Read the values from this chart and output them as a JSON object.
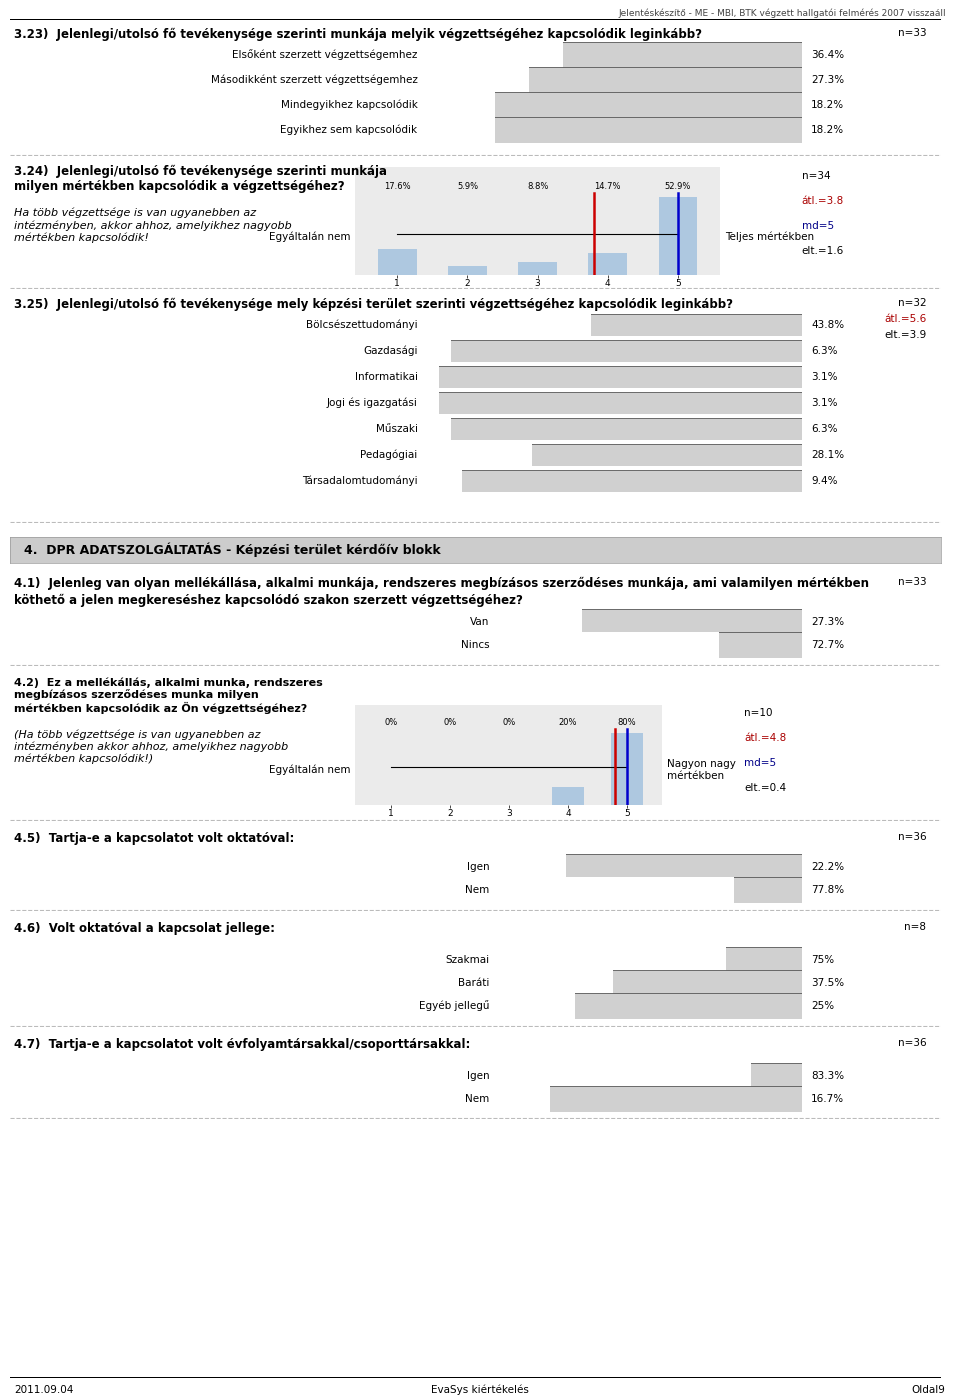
{
  "header": "Jelentéskészítő - ME - MBI, BTK végzett hallgatói felmérés 2007 visszaáll",
  "footer_left": "2011.09.04",
  "footer_center": "EvaSys kiértékelés",
  "footer_right": "Oldal9",
  "q323_label": "3.23)  Jelenlegi/utolsó fő tevékenysége szerinti munkája melyik végzettségéhez kapcsolódik leginkább?",
  "q323_categories": [
    "Elsőként szerzett végzettségemhez",
    "Másodikként szerzett végzettségemhez",
    "Mindegyikhez kapcsolódik",
    "Egyikhez sem kapcsolódik"
  ],
  "q323_values": [
    36.4,
    27.3,
    18.2,
    18.2
  ],
  "q323_n": "n=33",
  "q324_label_bold": "3.24)  Jelenlegi/utolsó fő tevékenysége szerinti munkája\nmilyen mértékben kapcsolódik a végzettségéhez?",
  "q324_label_italic": "Ha több végzettsége is van ugyanebben az\nintézményben, akkor ahhoz, amelyikhez nagyobb\nmértékben kapcsolódik!",
  "q324_percentages": [
    "17.6%",
    "5.9%",
    "8.8%",
    "14.7%",
    "52.9%"
  ],
  "q324_values": [
    17.6,
    5.9,
    8.8,
    14.7,
    52.9
  ],
  "q324_left_label": "Egyáltalán nem",
  "q324_right_label": "Teljes mértékben",
  "q324_n": "n=34",
  "q324_avg": "átl.=3.8",
  "q324_md": "md=5",
  "q324_elt": "elt.=1.6",
  "q324_mean": 3.8,
  "q324_median": 5,
  "q325_label": "3.25)  Jelenlegi/utolsó fő tevékenysége mely képzési terület szerinti végzettségéhez kapcsolódik leginkább?",
  "q325_categories": [
    "Bölcsészettudományi",
    "Gazdasági",
    "Informatikai",
    "Jogi és igazgatási",
    "Műszaki",
    "Pedagógiai",
    "Társadalomtudományi"
  ],
  "q325_values": [
    43.8,
    6.3,
    3.1,
    3.1,
    6.3,
    28.1,
    9.4
  ],
  "q325_n": "n=32",
  "q325_avg": "átl.=5.6",
  "q325_elt": "elt.=3.9",
  "section4_label": "4.  DPR ADATSZOLGÁLTATÁS - Képzési terület kérdőív blokk",
  "q41_label_line1": "4.1)  Jelenleg van olyan mellékállása, alkalmi munkája, rendszeres megbízásos szerződéses munkája, ami valamilyen mértékben",
  "q41_label_line2": "köthető a jelen megkereséshez kapcsolódó szakon szerzett végzettségéhez?",
  "q41_categories": [
    "Van",
    "Nincs"
  ],
  "q41_values": [
    27.3,
    72.7
  ],
  "q41_n": "n=33",
  "q42_label_bold": "4.2)  Ez a mellékállás, alkalmi munka, rendszeres\nmegbízásos szerződéses munka milyen\nmértékben kapcsolódik az Ön végzettségéhez?",
  "q42_label_italic": "(Ha több végzettsége is van ugyanebben az\nintézményben akkor ahhoz, amelyikhez nagyobb\nmértékben kapcsolódik!)",
  "q42_percentages": [
    "0%",
    "0%",
    "0%",
    "20%",
    "80%"
  ],
  "q42_values": [
    0,
    0,
    0,
    20,
    80
  ],
  "q42_left_label": "Egyáltalán nem",
  "q42_right_label": "Nagyon nagy\nmértékben",
  "q42_n": "n=10",
  "q42_avg": "átl.=4.8",
  "q42_md": "md=5",
  "q42_elt": "elt.=0.4",
  "q42_mean": 4.8,
  "q42_median": 5,
  "q45_label": "4.5)  Tartja-e a kapcsolatot volt oktatóval:",
  "q45_categories": [
    "Igen",
    "Nem"
  ],
  "q45_values": [
    22.2,
    77.8
  ],
  "q45_n": "n=36",
  "q46_label": "4.6)  Volt oktatóval a kapcsolat jellege:",
  "q46_categories": [
    "Szakmai",
    "Baráti",
    "Egyéb jellegű"
  ],
  "q46_values": [
    75.0,
    37.5,
    25.0
  ],
  "q46_n": "n=8",
  "q47_label": "4.7)  Tartja-e a kapcsolatot volt évfolyamtársakkal/csoporttársakkal:",
  "q47_categories": [
    "Igen",
    "Nem"
  ],
  "q47_values": [
    83.3,
    16.7
  ],
  "q47_n": "n=36",
  "bar_fill_color": "#d0d0d0",
  "bar_outline_color": "#555555",
  "bar_white_color": "#ffffff",
  "text_color": "#000000",
  "avg_color": "#aa0000",
  "md_color": "#000088",
  "section_bg": "#cccccc",
  "dashed_line_color": "#aaaaaa",
  "hist_bar_color": "#aec8e0"
}
